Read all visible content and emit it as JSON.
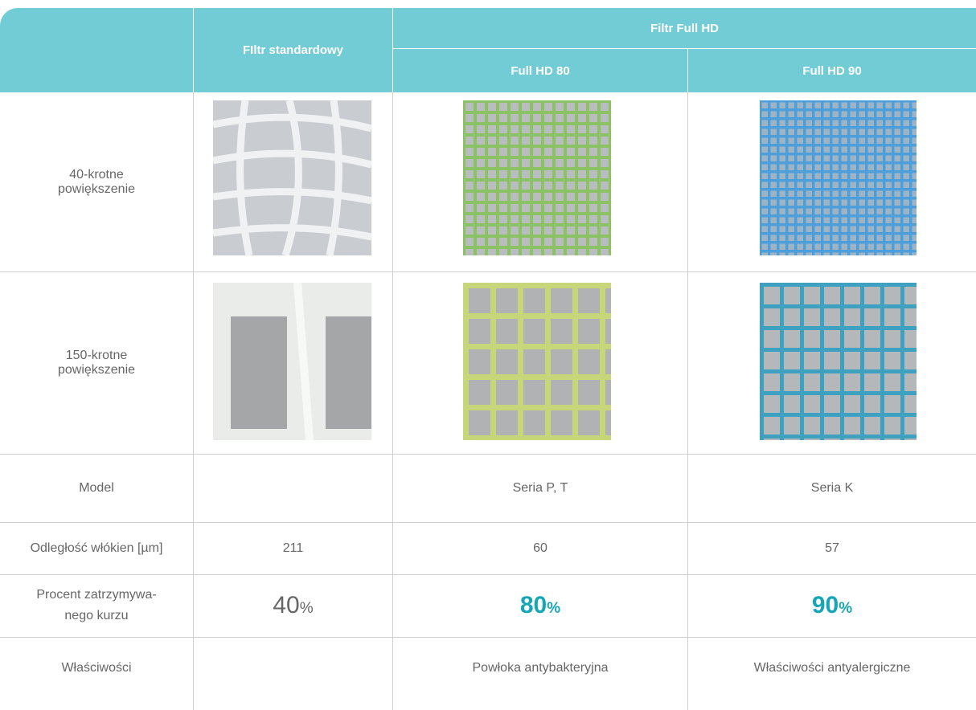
{
  "header": {
    "standard": "FIltr standardowy",
    "full_hd": "Filtr Full HD",
    "hd80": "Full HD 80",
    "hd90": "Full HD 90"
  },
  "rows": {
    "zoom40": {
      "label": [
        "40-krotne",
        "powiększenie"
      ]
    },
    "zoom150": {
      "label": [
        "150-krotne",
        "powiększenie"
      ]
    },
    "model": {
      "label": [
        "Model"
      ],
      "hd80": "Seria P, T",
      "hd90": "Seria K"
    },
    "distance": {
      "label": [
        "Odległość włókien [µm]"
      ],
      "standard": 211,
      "hd80": 60,
      "hd90": 57
    },
    "retention": {
      "label": [
        "Procent zatrzymywa-",
        "nego kurzu"
      ],
      "standard": {
        "value": 40,
        "unit": "%"
      },
      "hd80": {
        "value": 80,
        "unit": "%"
      },
      "hd90": {
        "value": 90,
        "unit": "%"
      }
    },
    "properties": {
      "label": [
        "Właściwości"
      ],
      "hd80": "Powłoka antybakteryjna",
      "hd90": "Właściwości antyalergiczne"
    }
  }
}
